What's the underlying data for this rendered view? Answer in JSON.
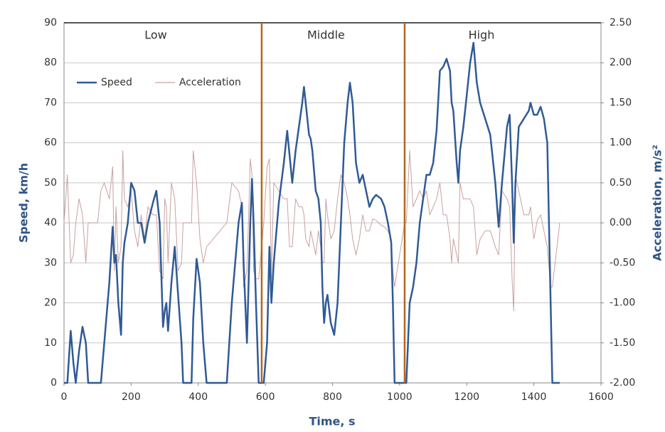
{
  "chart_data": {
    "type": "line",
    "x_label": "Time, s",
    "y_label": "Speed, km/h",
    "y2_label": "Acceleration, m/s²",
    "x": [
      0,
      10,
      20,
      28,
      35,
      45,
      55,
      65,
      72,
      100,
      110,
      120,
      135,
      145,
      150,
      155,
      162,
      170,
      175,
      180,
      190,
      200,
      210,
      220,
      230,
      240,
      250,
      265,
      275,
      285,
      295,
      300,
      305,
      310,
      320,
      330,
      340,
      350,
      355,
      380,
      385,
      395,
      405,
      415,
      425,
      485,
      500,
      520,
      530,
      535,
      545,
      555,
      560,
      565,
      572,
      580,
      595,
      605,
      612,
      618,
      625,
      640,
      655,
      665,
      672,
      680,
      690,
      700,
      710,
      715,
      720,
      730,
      735,
      740,
      750,
      758,
      765,
      770,
      775,
      780,
      785,
      795,
      805,
      815,
      825,
      835,
      845,
      852,
      860,
      870,
      880,
      890,
      900,
      910,
      920,
      930,
      945,
      955,
      965,
      975,
      980,
      985,
      1015,
      1020,
      1030,
      1040,
      1050,
      1060,
      1070,
      1080,
      1090,
      1100,
      1110,
      1120,
      1130,
      1140,
      1150,
      1155,
      1160,
      1170,
      1175,
      1180,
      1190,
      1200,
      1210,
      1220,
      1230,
      1240,
      1255,
      1270,
      1285,
      1295,
      1305,
      1320,
      1328,
      1335,
      1340,
      1345,
      1355,
      1370,
      1385,
      1390,
      1400,
      1410,
      1420,
      1430,
      1440,
      1450,
      1455,
      1477
    ],
    "series": [
      {
        "name": "Speed",
        "color": "#2f5a96",
        "values": [
          0,
          0,
          13,
          5,
          0,
          8,
          14,
          10,
          0,
          0,
          0,
          10,
          25,
          39,
          30,
          32,
          20,
          12,
          30,
          35,
          40,
          50,
          48,
          40,
          40,
          35,
          40,
          45,
          48,
          40,
          14,
          18,
          20,
          13,
          25,
          34,
          22,
          10,
          0,
          0,
          16,
          31,
          25,
          10,
          0,
          0,
          20,
          40,
          45,
          30,
          10,
          40,
          51,
          40,
          20,
          0,
          0,
          10,
          34,
          20,
          30,
          45,
          55,
          63,
          57,
          50,
          58,
          64,
          70,
          74,
          70,
          62,
          61,
          58,
          48,
          46,
          40,
          24,
          15,
          20,
          22,
          15,
          12,
          20,
          40,
          60,
          70,
          75,
          70,
          55,
          50,
          52,
          48,
          44,
          46,
          47,
          46,
          44,
          40,
          35,
          20,
          0,
          0,
          0,
          20,
          24,
          30,
          40,
          46,
          52,
          52,
          55,
          63,
          78,
          79,
          81,
          78,
          70,
          68,
          55,
          50,
          58,
          64,
          72,
          80,
          85,
          75,
          70,
          66,
          62,
          50,
          39,
          50,
          64,
          67,
          50,
          35,
          50,
          64,
          66,
          68,
          70,
          67,
          67,
          69,
          66,
          60,
          20,
          0,
          0
        ]
      },
      {
        "name": "Acceleration",
        "color": "#c9a0a0",
        "axis": "y2",
        "values": [
          0,
          0.6,
          -0.5,
          -0.4,
          0,
          0.3,
          0.1,
          -0.5,
          0,
          0,
          0.4,
          0.5,
          0.3,
          0.7,
          -0.6,
          0.2,
          -0.5,
          -0.3,
          0.9,
          0.3,
          0.2,
          0.4,
          -0.1,
          -0.3,
          0.1,
          -0.2,
          0.2,
          0.1,
          0.1,
          -0.6,
          -0.7,
          0.3,
          0.2,
          -0.5,
          0.5,
          0.3,
          -0.6,
          -0.5,
          0,
          0,
          0.9,
          0.5,
          -0.2,
          -0.5,
          -0.3,
          0,
          0.5,
          0.4,
          0.2,
          -0.8,
          -0.6,
          0.8,
          0.6,
          -0.6,
          -0.7,
          -0.7,
          0,
          0.7,
          0.8,
          -0.7,
          0.5,
          0.4,
          0.3,
          0.3,
          -0.3,
          -0.3,
          0.3,
          0.2,
          0.2,
          0.1,
          -0.2,
          -0.3,
          -0.1,
          -0.2,
          -0.4,
          -0.1,
          -0.3,
          -0.5,
          -0.5,
          0.3,
          0.1,
          -0.2,
          -0.1,
          0.3,
          0.6,
          0.5,
          0.3,
          0.1,
          -0.2,
          -0.4,
          -0.2,
          0.1,
          -0.1,
          -0.1,
          0.05,
          0.03,
          -0.03,
          -0.05,
          -0.1,
          -0.2,
          -0.6,
          -0.8,
          0,
          0,
          0.9,
          0.2,
          0.3,
          0.4,
          0.3,
          0.4,
          0.1,
          0.2,
          0.3,
          0.5,
          0.1,
          0.1,
          -0.2,
          -0.5,
          -0.2,
          -0.4,
          -0.5,
          0.5,
          0.3,
          0.3,
          0.3,
          0.2,
          -0.4,
          -0.2,
          -0.1,
          -0.1,
          -0.3,
          -0.4,
          0.4,
          0.3,
          0.2,
          -0.7,
          -1.1,
          0.6,
          0.4,
          0.1,
          0.1,
          0.2,
          -0.2,
          0.03,
          0.1,
          -0.1,
          -0.3,
          -0.8,
          -0.8,
          0
        ]
      }
    ],
    "xlim": [
      0,
      1600
    ],
    "xticks": [
      0,
      200,
      400,
      600,
      800,
      1000,
      1200,
      1400,
      1600
    ],
    "ylim": [
      0,
      90
    ],
    "yticks": [
      0,
      10,
      20,
      30,
      40,
      50,
      60,
      70,
      80,
      90
    ],
    "y2lim": [
      -2,
      2.5
    ],
    "y2ticks": [
      {
        "value": -2,
        "label": "-2.00"
      },
      {
        "value": -1.5,
        "label": "-1.50"
      },
      {
        "value": -1,
        "label": "-1.00"
      },
      {
        "value": -0.5,
        "label": "-0.50"
      },
      {
        "value": 0,
        "label": "0.00"
      },
      {
        "value": 0.5,
        "label": "0.50"
      },
      {
        "value": 1,
        "label": "1.00"
      },
      {
        "value": 1.5,
        "label": "1.50"
      },
      {
        "value": 2,
        "label": "2.00"
      },
      {
        "value": 2.5,
        "label": "2.50"
      }
    ],
    "grid": true,
    "legend": "upper left",
    "dividers": [
      589,
      1015
    ],
    "divider_color": "#b5651d",
    "region_labels": [
      "Low",
      "Middle",
      "High"
    ]
  }
}
